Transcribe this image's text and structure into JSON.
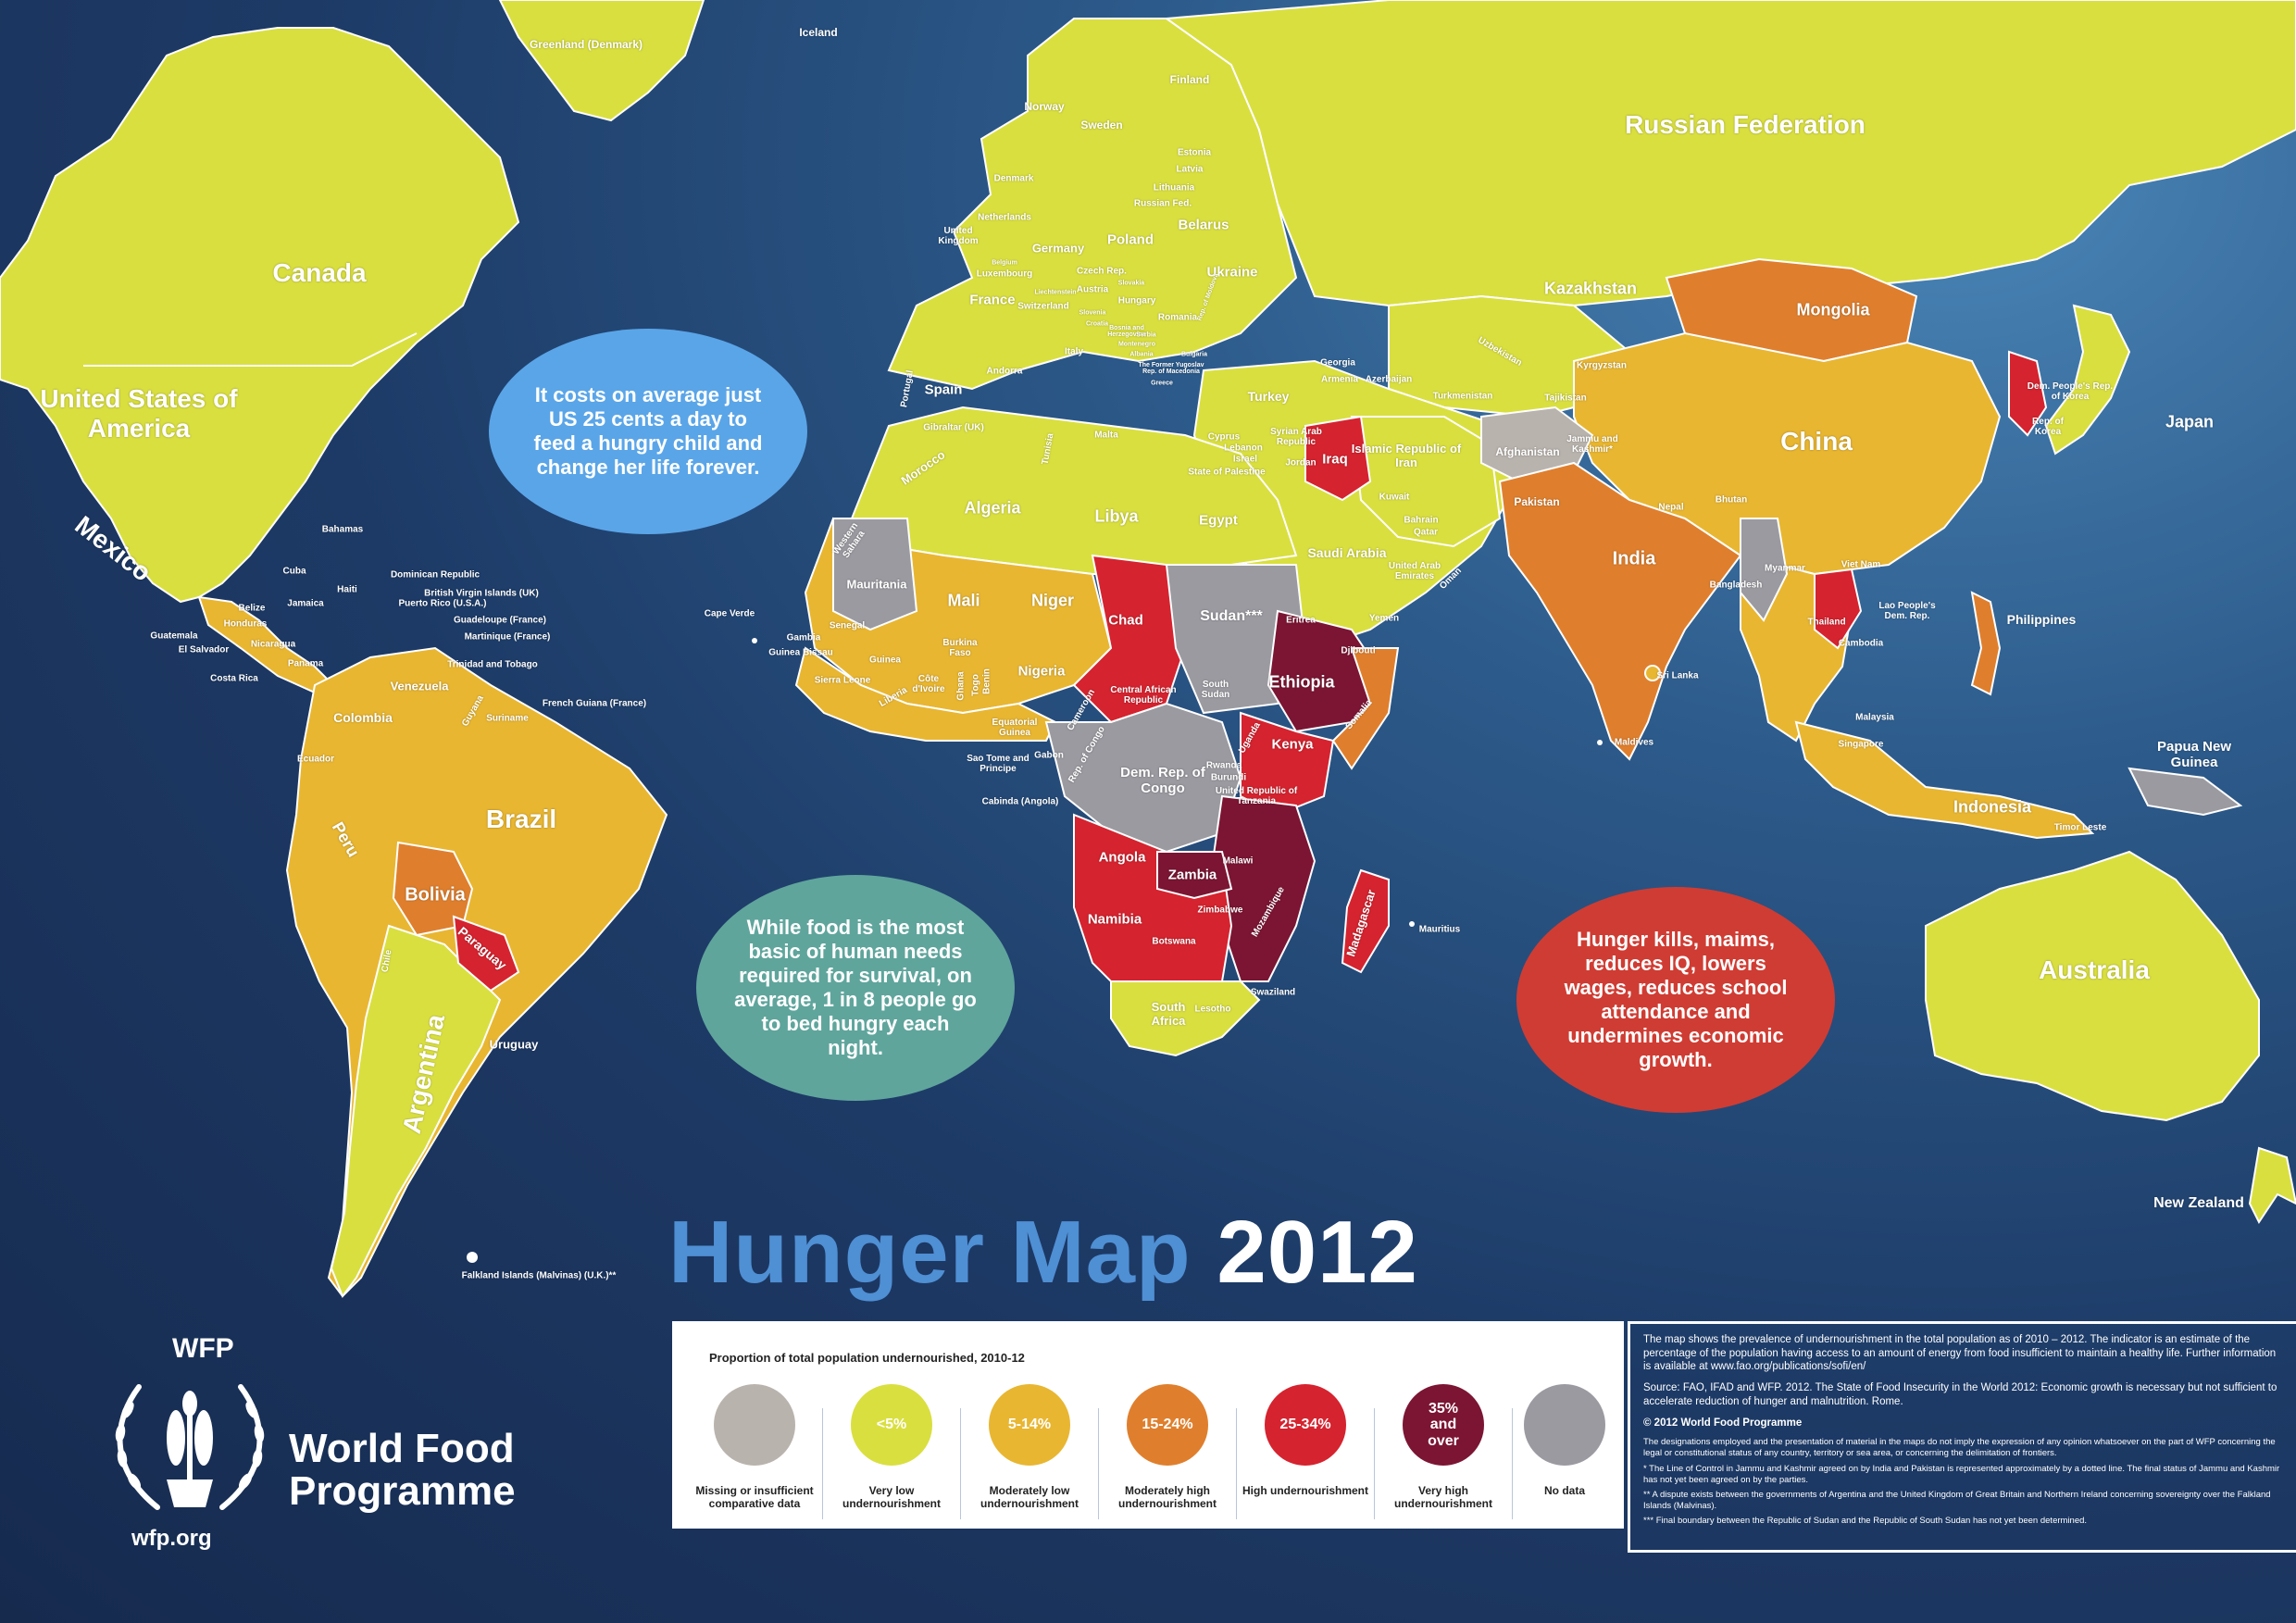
{
  "title": {
    "part1": "Hunger Map",
    "part2": "2012"
  },
  "colors": {
    "ocean": "#1d3a66",
    "very_low": "#d9df3f",
    "moderately_low": "#e8b631",
    "moderately_high": "#df7f2d",
    "high": "#d5232f",
    "very_high": "#7b1533",
    "missing": "#b9b3ad",
    "no_data": "#9a9aa0",
    "bubble_blue": "#5aa5e8",
    "bubble_teal": "#5fa59c",
    "bubble_red": "#cf3c33"
  },
  "bubbles": [
    {
      "id": "blue",
      "text": "It costs on average just US 25 cents a day to feed a hungry child and change her life forever."
    },
    {
      "id": "teal",
      "text": "While food is the most basic of human needs required for survival, on average, 1 in 8 people go to bed hungry each night."
    },
    {
      "id": "red",
      "text": "Hunger kills, maims, reduces IQ, lowers wages, reduces school attendance and undermines economic growth."
    }
  ],
  "labels": {
    "large": [
      "Russian Federation",
      "Canada",
      "United States of America",
      "China",
      "Brazil",
      "Australia",
      "Mexico",
      "Argentina"
    ],
    "medium": [
      "Greenland (Denmark)",
      "Iceland",
      "Finland",
      "Norway",
      "Sweden",
      "Kazakhstan",
      "Mongolia",
      "Japan",
      "India",
      "Algeria",
      "Libya",
      "Egypt",
      "Mali",
      "Niger",
      "Chad",
      "Sudan***",
      "Ethiopia",
      "Nigeria",
      "Kenya",
      "Angola",
      "Zambia",
      "Namibia",
      "South Africa",
      "Madagascar",
      "Indonesia",
      "Papua New Guinea",
      "New Zealand",
      "Philippines",
      "Bolivia",
      "Peru",
      "Colombia",
      "Venezuela",
      "Paraguay",
      "Uruguay",
      "Poland",
      "Ukraine",
      "Belarus",
      "Germany",
      "France",
      "Spain",
      "Turkey",
      "Iraq",
      "Saudi Arabia",
      "Dem. Rep. of Congo",
      "Islamic Republic of Iran",
      "Afghanistan",
      "Pakistan",
      "Mauritania",
      "Morocco"
    ],
    "small": [
      "Denmark",
      "Netherlands",
      "United Kingdom",
      "Luxembourg",
      "Czech Rep.",
      "Austria",
      "Switzerland",
      "Italy",
      "Portugal",
      "Romania",
      "Hungary",
      "Latvia",
      "Lithuania",
      "Estonia",
      "Russian Fed.",
      "Georgia",
      "Armenia",
      "Azerbaijan",
      "Uzbekistan",
      "Kyrgyzstan",
      "Tajikistan",
      "Turkmenistan",
      "Jammu and Kashmir*",
      "Dem. People's Rep. of Korea",
      "Rep. of Korea",
      "Nepal",
      "Bhutan",
      "Bangladesh",
      "Myanmar",
      "Viet Nam",
      "Lao People's Dem. Rep.",
      "Thailand",
      "Cambodia",
      "Sri Lanka",
      "Malaysia",
      "Singapore",
      "Maldives",
      "Timor Leste",
      "Kuwait",
      "Bahrain",
      "Qatar",
      "United Arab Emirates",
      "Oman",
      "Yemen",
      "Djibouti",
      "Eritrea",
      "Somalia",
      "South Sudan",
      "Uganda",
      "Rwanda",
      "Burundi",
      "United Republic of Tanzania",
      "Malawi",
      "Mozambique",
      "Zimbabwe",
      "Botswana",
      "Lesotho",
      "Swaziland",
      "Mauritius",
      "Gabon",
      "Rep. of Congo",
      "Cabinda (Angola)",
      "Central African Republic",
      "Cameroon",
      "Equatorial Guinea",
      "Sao Tome and Principe",
      "Ghana",
      "Togo",
      "Benin",
      "Côte d'Ivoire",
      "Liberia",
      "Sierra Leone",
      "Guinea",
      "Guinea Bissau",
      "Gambia",
      "Senegal",
      "Burkina Faso",
      "Cape Verde",
      "Western Sahara",
      "Tunisia",
      "Malta",
      "Gibraltar (UK)",
      "Andorra",
      "Cyprus",
      "Lebanon",
      "Israel",
      "Syrian Arab Republic",
      "Jordan",
      "State of Palestine",
      "Bahamas",
      "Cuba",
      "Jamaica",
      "Haiti",
      "Dominican Republic",
      "British Virgin Islands (UK)",
      "Puerto Rico (U.S.A.)",
      "Guadeloupe (France)",
      "Martinique (France)",
      "Trinidad and Tobago",
      "Belize",
      "Honduras",
      "Guatemala",
      "El Salvador",
      "Nicaragua",
      "Costa Rica",
      "Panama",
      "Ecuador",
      "Chile",
      "Guyana",
      "Suriname",
      "French Guiana (France)",
      "Falkland Islands (Malvinas) (U.K.)**",
      "Slovenia",
      "Croatia",
      "Bosnia and Herzegovina",
      "Serbia",
      "Montenegro",
      "Albania",
      "The Former Yugoslav Rep. of Macedonia",
      "Bulgaria",
      "Greece",
      "Belgium",
      "Liechtenstein",
      "Slovakia",
      "Rep. of Moldova"
    ]
  },
  "legend": {
    "title": "Proportion of total population undernourished, 2010-12",
    "items": [
      {
        "value": "",
        "label": "Missing or insufficient comparative data",
        "color": "#b9b3ad"
      },
      {
        "value": "<5%",
        "label": "Very low undernourishment",
        "color": "#d9df3f"
      },
      {
        "value": "5-14%",
        "label": "Moderately low undernourishment",
        "color": "#e8b631"
      },
      {
        "value": "15-24%",
        "label": "Moderately high undernourishment",
        "color": "#df7f2d"
      },
      {
        "value": "25-34%",
        "label": "High undernourishment",
        "color": "#d5232f"
      },
      {
        "value": "35% and over",
        "label": "Very high undernourishment",
        "color": "#7b1533"
      },
      {
        "value": "",
        "label": "No data",
        "color": "#9a9aa0"
      }
    ]
  },
  "notes": {
    "intro": "The map shows the prevalence of undernourishment in the total population as of 2010 – 2012. The indicator is an estimate of the percentage of the population having access to an amount of energy from food insufficient to maintain a healthy life. Further information is available at www.fao.org/publications/sofi/en/",
    "source": "Source: FAO, IFAD and WFP. 2012. The State of Food Insecurity in the World 2012: Economic growth is necessary but not sufficient to accelerate reduction of hunger and malnutrition. Rome.",
    "copyright": "© 2012 World Food Programme",
    "disclaimer": "The designations employed and the presentation of material in the maps do not imply the expression of any opinion whatsoever on the part of WFP concerning the legal or constitutional status of any country, territory or sea area, or concerning the delimitation of frontiers.",
    "fn1": "* The Line of Control in Jammu and Kashmir agreed on by India and Pakistan is represented approximately by a dotted line. The final status of Jammu and Kashmir has not yet been agreed on by the parties.",
    "fn2": "** A dispute exists between the governments of Argentina and the United Kingdom of Great Britain and Northern Ireland concerning sovereignty over the Falkland Islands (Malvinas).",
    "fn3": "*** Final boundary between the Republic of Sudan and the Republic of South Sudan has not yet been determined."
  },
  "wfp": {
    "abbr": "WFP",
    "name_line1": "World Food",
    "name_line2": "Programme",
    "url": "wfp.org",
    "emblem_icon": "wfp-emblem-icon"
  }
}
